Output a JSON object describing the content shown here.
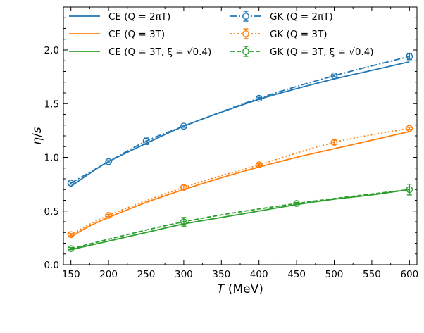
{
  "chart_data": {
    "type": "line",
    "title": "",
    "xlabel": "T (MeV)",
    "ylabel": "η/s",
    "xlim": [
      140,
      610
    ],
    "ylim": [
      0.0,
      2.4
    ],
    "x_ticks": [
      150,
      200,
      250,
      300,
      350,
      400,
      450,
      500,
      550,
      600
    ],
    "y_ticks": [
      0.0,
      0.5,
      1.0,
      1.5,
      2.0
    ],
    "y_tick_labels": [
      "0.0",
      "0.5",
      "1.0",
      "1.5",
      "2.0"
    ],
    "grid": false,
    "legend_position": "top",
    "colors": {
      "blue": "#1f77b4",
      "orange": "#ff7f0e",
      "green": "#2ca02c"
    },
    "series": [
      {
        "name": "CE (Q = 2πT)",
        "kind": "curve",
        "color": "#1f77b4",
        "dash": "solid",
        "x": [
          150,
          175,
          200,
          250,
          300,
          350,
          400,
          450,
          500,
          550,
          600
        ],
        "y": [
          0.73,
          0.85,
          0.96,
          1.13,
          1.29,
          1.42,
          1.54,
          1.64,
          1.73,
          1.81,
          1.89
        ]
      },
      {
        "name": "CE (Q = 3T)",
        "kind": "curve",
        "color": "#ff7f0e",
        "dash": "solid",
        "x": [
          150,
          175,
          200,
          250,
          300,
          350,
          400,
          450,
          500,
          550,
          600
        ],
        "y": [
          0.26,
          0.36,
          0.44,
          0.58,
          0.7,
          0.81,
          0.91,
          1.0,
          1.08,
          1.16,
          1.24
        ]
      },
      {
        "name": "CE (Q = 3T, ξ = √0.4)",
        "kind": "curve",
        "color": "#2ca02c",
        "dash": "solid",
        "x": [
          150,
          175,
          200,
          250,
          300,
          350,
          400,
          450,
          500,
          550,
          600
        ],
        "y": [
          0.14,
          0.18,
          0.22,
          0.3,
          0.38,
          0.44,
          0.5,
          0.56,
          0.61,
          0.65,
          0.7
        ]
      },
      {
        "name": "GK (Q = 2πT)",
        "kind": "markers",
        "color": "#1f77b4",
        "dash": "dashdot",
        "x": [
          150,
          200,
          250,
          300,
          400,
          500,
          600
        ],
        "y": [
          0.76,
          0.96,
          1.15,
          1.29,
          1.55,
          1.76,
          1.94
        ],
        "err": [
          0.01,
          0.01,
          0.03,
          0.01,
          0.01,
          0.01,
          0.03
        ]
      },
      {
        "name": "GK (Q = 3T)",
        "kind": "markers",
        "color": "#ff7f0e",
        "dash": "dotted",
        "x": [
          150,
          200,
          300,
          400,
          500,
          600
        ],
        "y": [
          0.28,
          0.46,
          0.72,
          0.93,
          1.14,
          1.27
        ],
        "err": [
          0.01,
          0.01,
          0.02,
          0.01,
          0.02,
          0.01
        ]
      },
      {
        "name": "GK (Q = 3T, ξ = √0.4)",
        "kind": "markers",
        "color": "#2ca02c",
        "dash": "dashed",
        "x": [
          150,
          300,
          450,
          600
        ],
        "y": [
          0.15,
          0.4,
          0.57,
          0.7
        ],
        "err": [
          0.01,
          0.04,
          0.01,
          0.05
        ]
      }
    ]
  }
}
